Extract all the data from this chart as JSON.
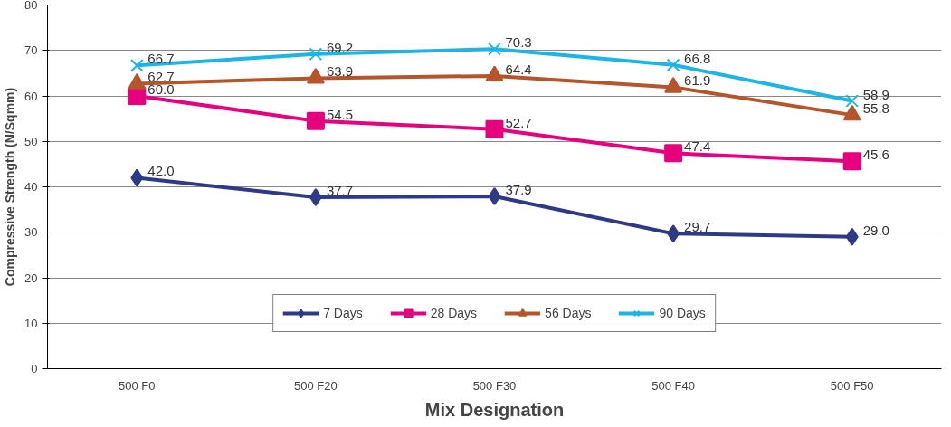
{
  "chart_data": {
    "type": "line",
    "xlabel": "Mix Designation",
    "ylabel": "Compressive Strength (N/Sqmm)",
    "categories": [
      "500 F0",
      "500 F20",
      "500 F30",
      "500 F40",
      "500 F50"
    ],
    "series": [
      {
        "name": "7 Days",
        "color": "#2e3a87",
        "marker": "diamond",
        "values": [
          42.0,
          37.7,
          37.9,
          29.7,
          29.0
        ],
        "value_labels": [
          "42.0",
          "37.7",
          "37.9",
          "29.7",
          "29.0"
        ]
      },
      {
        "name": "28 Days",
        "color": "#e6007e",
        "marker": "square",
        "values": [
          60.0,
          54.5,
          52.7,
          47.4,
          45.6
        ],
        "value_labels": [
          "60.0",
          "54.5",
          "52.7",
          "47.4",
          "45.6"
        ]
      },
      {
        "name": "56 Days",
        "color": "#b5552b",
        "marker": "triangle",
        "values": [
          62.7,
          63.9,
          64.4,
          61.9,
          55.8
        ],
        "value_labels": [
          "62.7",
          "63.9",
          "64.4",
          "61.9",
          "55.8"
        ]
      },
      {
        "name": "90 Days",
        "color": "#1eb4e6",
        "marker": "cross",
        "values": [
          66.7,
          69.2,
          70.3,
          66.8,
          58.9
        ],
        "value_labels": [
          "66.7",
          "69.2",
          "70.3",
          "66.8",
          "58.9"
        ]
      }
    ],
    "ylim": [
      0,
      80
    ],
    "yticks": [
      0,
      10,
      20,
      30,
      40,
      50,
      60,
      70,
      80
    ],
    "grid": "y",
    "legend": "bottom",
    "line_style": "solid"
  }
}
